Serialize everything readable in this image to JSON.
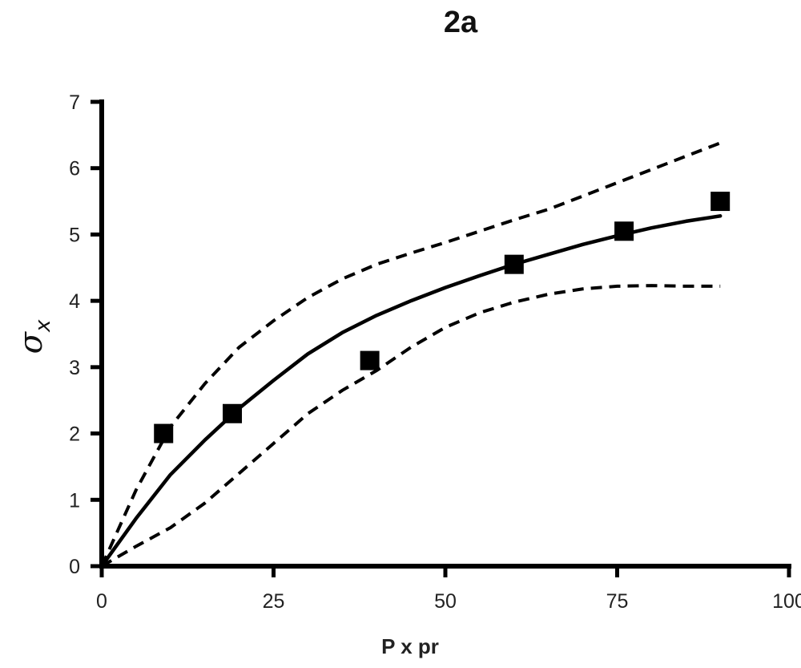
{
  "chart_data": {
    "type": "scatter",
    "title": "2a",
    "xlabel": "P x pr",
    "ylabel": "σ",
    "ylabel_subscript": "x",
    "xlim": [
      0,
      100
    ],
    "ylim": [
      0,
      7
    ],
    "x_ticks": [
      0,
      25,
      50,
      75,
      100
    ],
    "y_ticks": [
      0,
      1,
      2,
      3,
      4,
      5,
      6,
      7
    ],
    "grid": false,
    "legend": "none",
    "series": [
      {
        "style": "square-markers",
        "x": [
          9,
          19,
          39,
          60,
          76,
          90
        ],
        "y": [
          2.0,
          2.3,
          3.1,
          4.55,
          5.05,
          5.5
        ]
      },
      {
        "style": "solid-line",
        "x": [
          0,
          5,
          10,
          15,
          20,
          25,
          30,
          35,
          40,
          45,
          50,
          55,
          60,
          65,
          70,
          75,
          80,
          85,
          90
        ],
        "y": [
          0,
          0.72,
          1.38,
          1.9,
          2.38,
          2.8,
          3.2,
          3.52,
          3.78,
          4.0,
          4.2,
          4.38,
          4.55,
          4.7,
          4.85,
          4.98,
          5.1,
          5.2,
          5.28
        ]
      },
      {
        "style": "dashed-line",
        "x": [
          0,
          5,
          10,
          15,
          20,
          25,
          30,
          35,
          40,
          45,
          50,
          55,
          60,
          65,
          70,
          75,
          80,
          85,
          90
        ],
        "y": [
          0,
          1.15,
          2.1,
          2.75,
          3.3,
          3.7,
          4.05,
          4.33,
          4.55,
          4.72,
          4.88,
          5.05,
          5.22,
          5.38,
          5.58,
          5.78,
          5.98,
          6.18,
          6.38
        ]
      },
      {
        "style": "dashed-line",
        "x": [
          0,
          5,
          10,
          15,
          20,
          25,
          30,
          35,
          40,
          45,
          50,
          55,
          60,
          65,
          70,
          75,
          80,
          85,
          90
        ],
        "y": [
          0,
          0.3,
          0.58,
          0.95,
          1.4,
          1.85,
          2.3,
          2.65,
          2.95,
          3.3,
          3.6,
          3.82,
          3.98,
          4.1,
          4.18,
          4.22,
          4.23,
          4.22,
          4.22
        ]
      }
    ]
  }
}
